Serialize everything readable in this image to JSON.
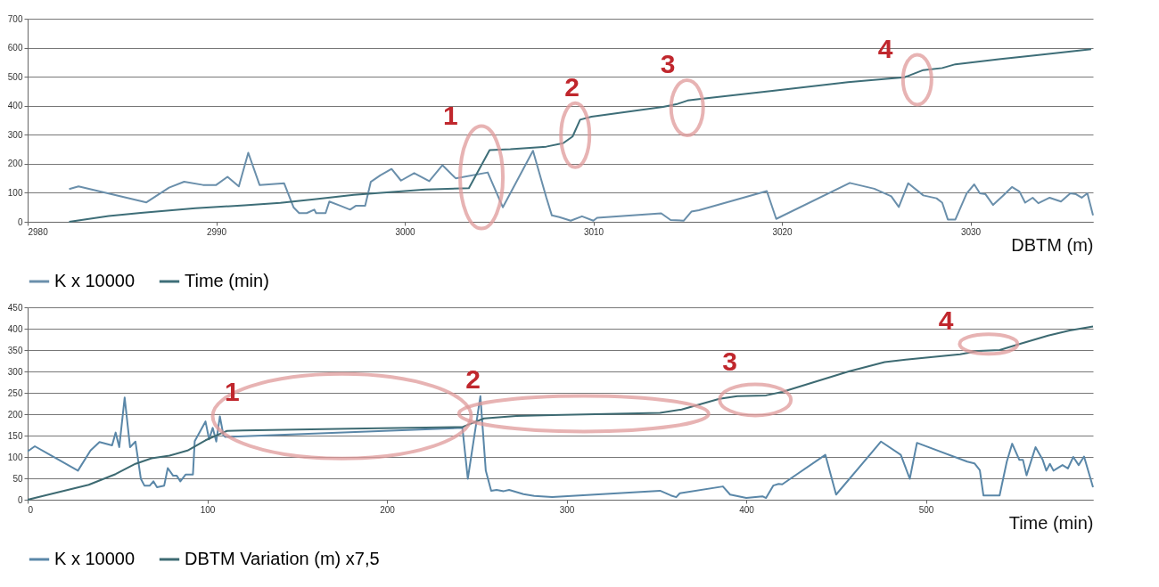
{
  "chart_data": [
    {
      "type": "line",
      "xlabel": "DBTM (m)",
      "xlim": [
        2980,
        3036.5
      ],
      "xticks": [
        2980,
        2990,
        3000,
        3010,
        3020,
        3030
      ],
      "ylim": [
        0,
        700
      ],
      "yticks": [
        0,
        100,
        200,
        300,
        400,
        500,
        600,
        700
      ],
      "grid": "y",
      "legend": "bottom",
      "series": [
        {
          "name": "K x 10000",
          "color": "#6a8fab",
          "x": [
            2982.2,
            2982.7,
            2986.3,
            2987.5,
            2988.3,
            2989.3,
            2990,
            2990.6,
            2991.2,
            2991.7,
            2992.3,
            2993.6,
            2994.1,
            2994.4,
            2994.8,
            2995.2,
            2995.3,
            2995.8,
            2996,
            2996.6,
            2997.1,
            2997.4,
            2997.9,
            2998.2,
            2998.7,
            2999.3,
            2999.8,
            3000.5,
            3001.3,
            3002,
            3002.7,
            3004.4,
            3005.2,
            3006.8,
            3007.5,
            3007.8,
            3008.2,
            3008.8,
            3009.4,
            3010,
            3010.2,
            3013.6,
            3014.1,
            3014.8,
            3015.2,
            3015.6,
            3019.2,
            3019.7,
            3023.6,
            3024.9,
            3025.8,
            3026.2,
            3026.7,
            3027.5,
            3028.2,
            3028.5,
            3028.8,
            3029.2,
            3029.8,
            3030.2,
            3030.5,
            3030.8,
            3031.2,
            3031.7,
            3032.2,
            3032.6,
            3032.9,
            3033.3,
            3033.6,
            3034.2,
            3034.8,
            3035.3,
            3035.6,
            3035.9,
            3036.2,
            3036.5
          ],
          "values": [
            113,
            122,
            67,
            118,
            138,
            127,
            127,
            155,
            122,
            238,
            127,
            133,
            50,
            30,
            30,
            42,
            30,
            30,
            70,
            55,
            42,
            55,
            55,
            138,
            160,
            182,
            142,
            168,
            140,
            195,
            150,
            170,
            50,
            245,
            85,
            22,
            16,
            4,
            19,
            4,
            14,
            29,
            6,
            4,
            35,
            40,
            106,
            10,
            134,
            114,
            88,
            51,
            133,
            91,
            81,
            66,
            8,
            8,
            98,
            129,
            98,
            95,
            58,
            88,
            120,
            104,
            66,
            83,
            64,
            83,
            70,
            98,
            95,
            83,
            98,
            22
          ]
        },
        {
          "name": "Time (min)",
          "color": "#3e6e78",
          "x": [
            2982.2,
            2984.3,
            2986,
            2988.9,
            2991.5,
            2993.4,
            2995.3,
            2997.3,
            2999.2,
            3001.1,
            3003.4,
            3004.5,
            3005.6,
            3007.5,
            3008.4,
            3008.9,
            3009.3,
            3009.9,
            3013.7,
            3014.4,
            3015,
            3015.6,
            3019.6,
            3023.5,
            3026.5,
            3027.5,
            3028.5,
            3029.2,
            3031.5,
            3033.5,
            3036.4
          ],
          "values": [
            0,
            20,
            31,
            47,
            57,
            65,
            78,
            93,
            102,
            111,
            116,
            247,
            250,
            259,
            271,
            294,
            352,
            362,
            396,
            405,
            418,
            423,
            452,
            481,
            498,
            523,
            530,
            543,
            560,
            574,
            595
          ]
        }
      ],
      "annotations": [
        "1",
        "2",
        "3",
        "4"
      ]
    },
    {
      "type": "line",
      "xlabel": "Time (min)",
      "xlim": [
        0,
        593
      ],
      "xticks": [
        0,
        100,
        200,
        300,
        400,
        500
      ],
      "ylim": [
        0,
        450
      ],
      "yticks": [
        0,
        50,
        100,
        150,
        200,
        250,
        300,
        350,
        400,
        450
      ],
      "grid": "y",
      "legend": "bottom",
      "series": [
        {
          "name": "K x 10000",
          "color": "#5a87a8",
          "x": [
            0,
            4,
            28,
            35,
            40,
            47,
            49,
            51,
            54,
            57,
            60,
            63,
            65,
            68,
            70,
            72,
            76,
            78,
            81,
            83,
            85,
            88,
            92,
            93,
            99,
            101,
            103,
            105,
            107,
            109,
            110,
            242,
            245,
            252,
            255,
            258,
            261,
            265,
            268,
            276,
            282,
            292,
            352,
            358,
            361,
            363,
            387,
            391,
            400,
            409,
            411,
            415,
            418,
            420,
            444,
            450,
            475,
            486,
            491,
            495,
            523,
            527,
            530,
            532,
            537,
            541,
            545,
            548,
            552,
            554,
            556,
            561,
            565,
            567,
            569,
            571,
            576,
            579,
            582,
            585,
            588,
            593
          ],
          "values": [
            113,
            125,
            68,
            115,
            135,
            127,
            157,
            123,
            239,
            123,
            136,
            49,
            33,
            33,
            43,
            29,
            33,
            74,
            56,
            56,
            43,
            59,
            59,
            137,
            183,
            141,
            168,
            136,
            195,
            150,
            147,
            168,
            49,
            242,
            68,
            21,
            23,
            20,
            23,
            13,
            9,
            6,
            21,
            10,
            6,
            15,
            31,
            12,
            4,
            8,
            4,
            33,
            37,
            36,
            105,
            12,
            136,
            105,
            49,
            133,
            89,
            85,
            69,
            10,
            10,
            10,
            89,
            131,
            93,
            93,
            57,
            123,
            93,
            68,
            84,
            68,
            81,
            73,
            100,
            81,
            101,
            29
          ]
        },
        {
          "name": "DBTM Variation (m) x7,5",
          "color": "#3d6a72",
          "x": [
            0,
            34,
            49,
            60,
            69,
            79,
            89,
            99,
            107,
            111,
            120,
            180,
            242,
            254,
            272,
            292,
            352,
            364,
            385,
            395,
            411,
            420,
            457,
            477,
            490,
            519,
            529,
            541,
            552,
            568,
            580,
            593
          ],
          "values": [
            0,
            35,
            60,
            84,
            97,
            103,
            115,
            139,
            154,
            161,
            162,
            166,
            170,
            190,
            196,
            198,
            203,
            211,
            236,
            242,
            244,
            252,
            300,
            322,
            328,
            340,
            348,
            350,
            364,
            384,
            396,
            405
          ]
        }
      ],
      "annotations": [
        "1",
        "2",
        "3",
        "4"
      ]
    }
  ]
}
